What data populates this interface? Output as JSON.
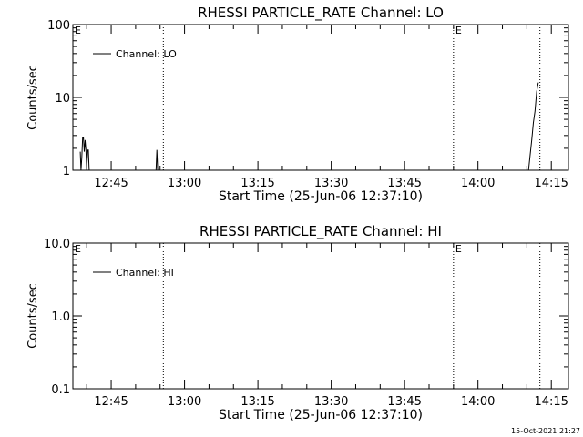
{
  "footer_date": "15-Oct-2021 21:27",
  "chart_data": [
    {
      "type": "line",
      "title": "RHESSI PARTICLE_RATE Channel: LO",
      "xlabel": "Start Time (25-Jun-06 12:37:10)",
      "ylabel": "Counts/sec",
      "yscale": "log",
      "ylim": [
        1,
        100
      ],
      "ytick_values": [
        1,
        10,
        100
      ],
      "ytick_labels": [
        "1",
        "10",
        "100"
      ],
      "xlim": [
        "12:37:10",
        "14:18:30"
      ],
      "xtick_labels": [
        "12:45",
        "13:00",
        "13:15",
        "13:30",
        "13:45",
        "14:00",
        "14:15"
      ],
      "xtick_times": [
        "12:45",
        "13:00",
        "13:15",
        "13:30",
        "13:45",
        "14:00",
        "14:15"
      ],
      "event_lines": [
        {
          "time": "12:55:40",
          "label": ""
        },
        {
          "time": "13:55:00",
          "label": "E"
        },
        {
          "time": "14:12:40",
          "label": ""
        }
      ],
      "edge_label": "E",
      "legend": {
        "entry": "Channel: LO",
        "position": "top-left"
      },
      "series": [
        {
          "name": "Channel: LO",
          "x": [
            "12:38:40",
            "12:38:50",
            "12:39:00",
            "12:39:10",
            "12:39:20",
            "12:39:30",
            "12:39:40",
            "12:39:50",
            "12:40:00",
            "12:40:10",
            "12:40:20",
            "12:40:30",
            "12:40:40",
            "12:40:50",
            "12:41:00"
          ],
          "y": [
            1.8,
            1.0,
            1.5,
            2.8,
            2.8,
            1.8,
            2.6,
            1.9,
            1.0,
            1.9,
            1.9,
            1.0,
            1.0,
            1.0,
            1.0
          ],
          "segment": 1
        },
        {
          "name": "Channel: LO",
          "x": [
            "12:54:10",
            "12:54:20",
            "12:54:30"
          ],
          "y": [
            1.0,
            1.9,
            1.0
          ],
          "segment": 2
        },
        {
          "name": "Channel: LO",
          "x": [
            "14:10:20",
            "14:10:40",
            "14:11:00",
            "14:11:20",
            "14:11:40",
            "14:12:00",
            "14:12:20"
          ],
          "y": [
            1.0,
            1.6,
            2.6,
            4.5,
            6.5,
            12.0,
            16.0
          ],
          "segment": 3
        }
      ]
    },
    {
      "type": "line",
      "title": "RHESSI PARTICLE_RATE Channel: HI",
      "xlabel": "Start Time (25-Jun-06 12:37:10)",
      "ylabel": "Counts/sec",
      "yscale": "log",
      "ylim": [
        0.1,
        10
      ],
      "ytick_values": [
        0.1,
        1,
        10
      ],
      "ytick_labels": [
        "0.1",
        "1.0",
        "10.0"
      ],
      "xlim": [
        "12:37:10",
        "14:18:30"
      ],
      "xtick_labels": [
        "12:45",
        "13:00",
        "13:15",
        "13:30",
        "13:45",
        "14:00",
        "14:15"
      ],
      "xtick_times": [
        "12:45",
        "13:00",
        "13:15",
        "13:30",
        "13:45",
        "14:00",
        "14:15"
      ],
      "event_lines": [
        {
          "time": "12:55:40",
          "label": ""
        },
        {
          "time": "13:55:00",
          "label": "E"
        },
        {
          "time": "14:12:40",
          "label": ""
        }
      ],
      "edge_label": "E",
      "legend": {
        "entry": "Channel: HI",
        "position": "top-left"
      },
      "series": []
    }
  ]
}
